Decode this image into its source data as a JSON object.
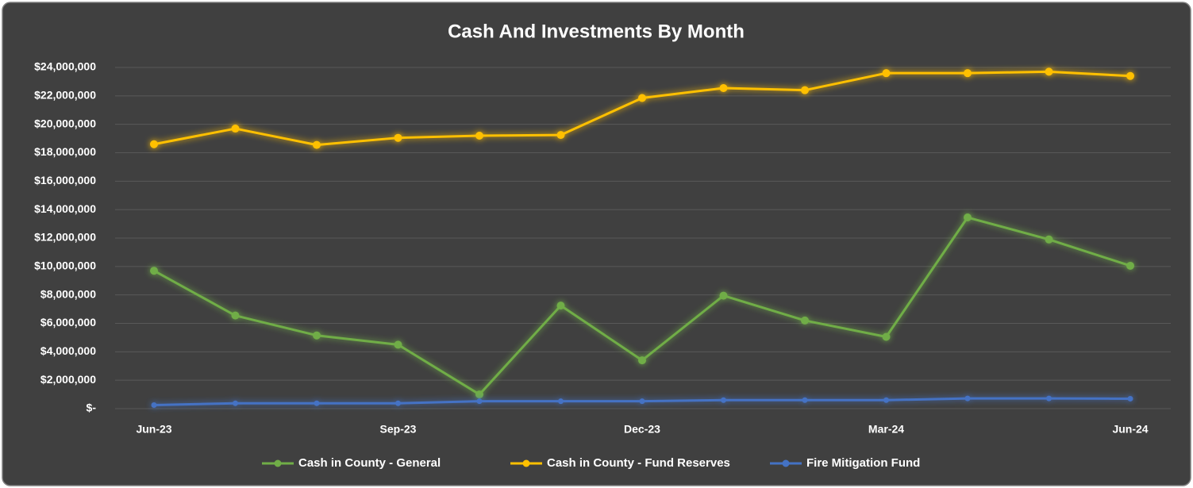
{
  "chart_data": {
    "type": "line",
    "title": "Cash And Investments By Month",
    "categories": [
      "Jun-23",
      null,
      null,
      "Sep-23",
      null,
      null,
      "Dec-23",
      null,
      null,
      "Mar-24",
      null,
      null,
      "Jun-24"
    ],
    "series": [
      {
        "name": "Cash in County - General",
        "color": "#70ad47",
        "values": [
          9700000,
          6550000,
          5150000,
          4500000,
          1000000,
          7250000,
          3400000,
          7950000,
          6200000,
          5050000,
          13450000,
          11900000,
          10050000
        ]
      },
      {
        "name": "Cash in County - Fund Reserves",
        "color": "#ffc000",
        "values": [
          18600000,
          19700000,
          18550000,
          19050000,
          19200000,
          19250000,
          21850000,
          22550000,
          22400000,
          23600000,
          23600000,
          23700000,
          23400000
        ]
      },
      {
        "name": "Fire Mitigation Fund",
        "color": "#4472c4",
        "values": [
          250000,
          380000,
          380000,
          380000,
          520000,
          520000,
          520000,
          600000,
          600000,
          600000,
          720000,
          720000,
          700000
        ]
      }
    ],
    "ylim": [
      0,
      24000000
    ],
    "yticks": [
      {
        "value": 0,
        "label": "$-"
      },
      {
        "value": 2000000,
        "label": "$2,000,000"
      },
      {
        "value": 4000000,
        "label": "$4,000,000"
      },
      {
        "value": 6000000,
        "label": "$6,000,000"
      },
      {
        "value": 8000000,
        "label": "$8,000,000"
      },
      {
        "value": 10000000,
        "label": "$10,000,000"
      },
      {
        "value": 12000000,
        "label": "$12,000,000"
      },
      {
        "value": 14000000,
        "label": "$14,000,000"
      },
      {
        "value": 16000000,
        "label": "$16,000,000"
      },
      {
        "value": 18000000,
        "label": "$18,000,000"
      },
      {
        "value": 20000000,
        "label": "$20,000,000"
      },
      {
        "value": 22000000,
        "label": "$22,000,000"
      },
      {
        "value": 24000000,
        "label": "$24,000,000"
      }
    ],
    "grid": true,
    "legend": "bottom"
  }
}
